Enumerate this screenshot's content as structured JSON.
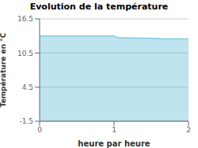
{
  "chart_data": {
    "type": "area",
    "title": "Evolution de la température",
    "xlabel": "heure par heure",
    "ylabel": "Température en °C",
    "x": [
      0,
      0.5,
      1.0,
      1.05,
      1.5,
      1.7,
      1.75,
      2.0
    ],
    "values": [
      13.5,
      13.5,
      13.5,
      13.2,
      13.1,
      13.0,
      13.0,
      13.0
    ],
    "color": "#5bbcd6",
    "xlim": [
      0,
      2
    ],
    "xticks": [
      0,
      1,
      2
    ],
    "ylim": [
      -1.5,
      16.5
    ],
    "yticks": [
      -1.5,
      4.5,
      10.5,
      16.5
    ],
    "grid": true
  }
}
